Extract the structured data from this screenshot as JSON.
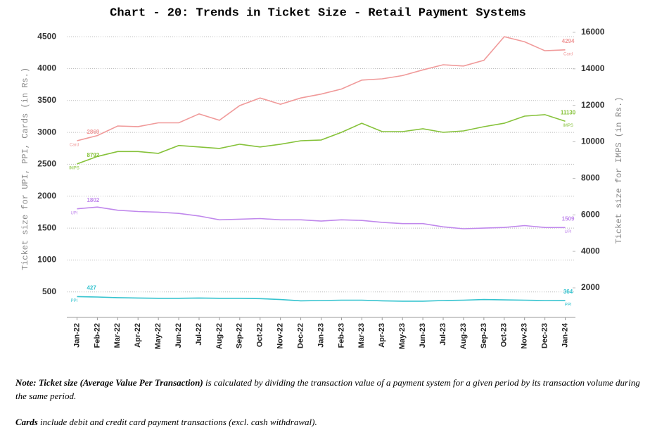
{
  "chart_data": {
    "type": "line",
    "title": "Chart - 20: Trends in Ticket Size - Retail Payment Systems",
    "y_label": "Ticket size for UPI, PPI, Cards (in Rs.)",
    "y2_label": "Ticket size for IMPS (in Rs.)",
    "categories": [
      "Jan-22",
      "Feb-22",
      "Mar-22",
      "Apr-22",
      "May-22",
      "Jun-22",
      "Jul-22",
      "Aug-22",
      "Sep-22",
      "Oct-22",
      "Nov-22",
      "Dec-22",
      "Jan-23",
      "Feb-23",
      "Mar-23",
      "Apr-23",
      "May-23",
      "Jun-23",
      "Jul-23",
      "Aug-23",
      "Sep-23",
      "Oct-23",
      "Nov-23",
      "Dec-23",
      "Jan-24"
    ],
    "ylim": [
      100,
      4700
    ],
    "yticks": [
      500,
      1000,
      1500,
      2000,
      2500,
      3000,
      3500,
      4000,
      4500
    ],
    "y2lim": [
      380,
      16460
    ],
    "y2ticks": [
      2000,
      4000,
      6000,
      8000,
      10000,
      12000,
      14000,
      16000
    ],
    "grid": true,
    "series": [
      {
        "name": "Card",
        "color": "#f09a9a",
        "values": [
          2869,
          2950,
          3100,
          3090,
          3150,
          3150,
          3290,
          3190,
          3420,
          3540,
          3440,
          3540,
          3600,
          3680,
          3820,
          3840,
          3890,
          3980,
          4060,
          4040,
          4130,
          4500,
          4420,
          4280,
          4294
        ]
      },
      {
        "name": "UPI",
        "color": "#c088ec",
        "values": [
          1802,
          1830,
          1780,
          1760,
          1750,
          1730,
          1690,
          1630,
          1640,
          1650,
          1630,
          1630,
          1610,
          1630,
          1620,
          1590,
          1570,
          1570,
          1520,
          1490,
          1500,
          1510,
          1540,
          1510,
          1509
        ]
      },
      {
        "name": "PPI",
        "color": "#34c3cf",
        "values": [
          427,
          420,
          410,
          405,
          400,
          400,
          405,
          400,
          400,
          395,
          380,
          360,
          365,
          370,
          370,
          360,
          355,
          355,
          365,
          370,
          380,
          375,
          370,
          365,
          364
        ]
      },
      {
        "name": "IMPS",
        "color": "#86c23a",
        "axis": "y2",
        "values": [
          8792,
          9200,
          9470,
          9470,
          9370,
          9800,
          9720,
          9640,
          9870,
          9720,
          9870,
          10060,
          10100,
          10520,
          11020,
          10560,
          10560,
          10720,
          10520,
          10600,
          10830,
          11020,
          11410,
          11490,
          11130
        ]
      }
    ]
  },
  "notes": {
    "note_bold": "Note: Ticket size (Average Value Per Transaction)",
    "note_rest": "is calculated by dividing the transaction value of a payment system for a given period by its transaction volume during the same period.",
    "cards_bold": "Cards",
    "cards_rest": "include debit and credit card payment transactions (excl. cash withdrawal)."
  }
}
